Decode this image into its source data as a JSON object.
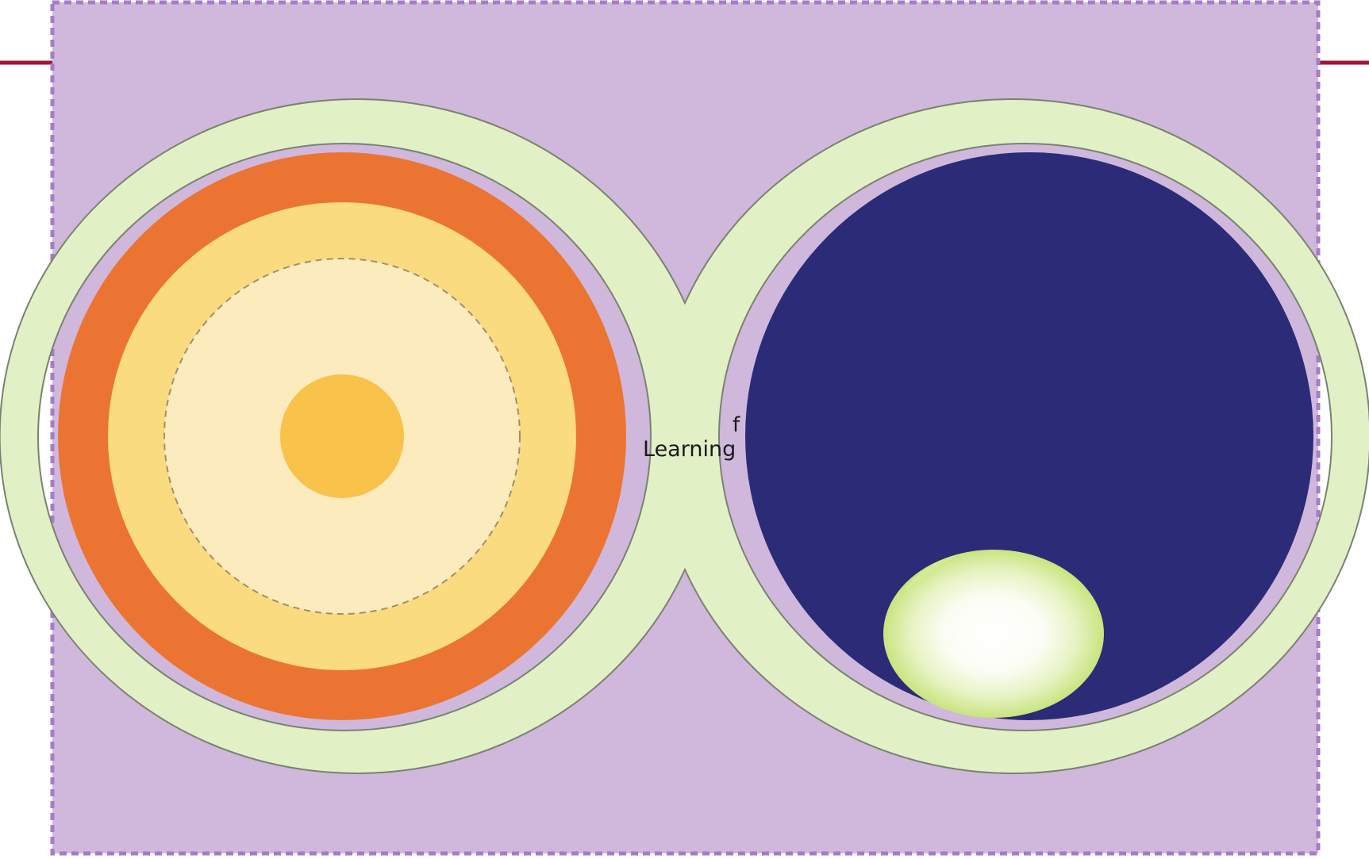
{
  "labels": {
    "center_main": "Learning",
    "center_sup": "f"
  },
  "colors": {
    "background_panel": "#cfb8db",
    "panel_border": "#a77bc7",
    "accent_line": "#a3123a",
    "ring": "#e2f0c6",
    "ring_stroke": "#7a8270",
    "left_outer": "#ec7432",
    "left_middle": "#fbdb80",
    "left_inner": "#fbebbd",
    "left_core": "#f9c24b",
    "right_fill": "#2b2b77",
    "highlight_edge": "#c9e47e",
    "highlight_center": "#ffffff"
  }
}
